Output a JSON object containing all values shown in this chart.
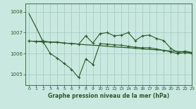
{
  "bg_color": "#c8e8e0",
  "grid_color": "#a0c8c0",
  "line_color": "#2d5a2d",
  "title": "Graphe pression niveau de la mer (hPa)",
  "xlim": [
    -0.5,
    23
  ],
  "ylim": [
    1004.5,
    1008.4
  ],
  "yticks": [
    1005,
    1006,
    1007,
    1008
  ],
  "xticks": [
    0,
    1,
    2,
    3,
    4,
    5,
    6,
    7,
    8,
    9,
    10,
    11,
    12,
    13,
    14,
    15,
    16,
    17,
    18,
    19,
    20,
    21,
    22,
    23
  ],
  "series1": [
    1007.9,
    1007.25,
    1006.55,
    1006.55,
    1006.55,
    1006.5,
    1006.48,
    1006.45,
    1006.42,
    1006.4,
    1006.38,
    1006.35,
    1006.32,
    1006.3,
    1006.28,
    1006.25,
    1006.22,
    1006.2,
    1006.18,
    1006.15,
    1006.12,
    1006.1,
    1006.08,
    1006.05
  ],
  "series2": [
    1006.6,
    1006.58,
    1006.6,
    1006.55,
    1006.53,
    1006.5,
    1006.48,
    1006.45,
    1006.85,
    1006.5,
    1006.95,
    1007.0,
    1006.85,
    1006.88,
    1007.0,
    1006.62,
    1006.85,
    1006.88,
    1006.72,
    1006.62,
    1006.25,
    1006.05,
    1006.12,
    1006.05
  ],
  "series3": [
    1006.6,
    1006.58,
    1006.55,
    1006.0,
    1005.78,
    1005.52,
    1005.25,
    1004.85,
    1005.75,
    1005.48,
    1006.48,
    1006.45,
    1006.42,
    1006.4,
    1006.35,
    1006.3,
    1006.28,
    1006.28,
    1006.22,
    1006.15,
    1006.08,
    1006.0,
    1006.05,
    1006.0
  ]
}
